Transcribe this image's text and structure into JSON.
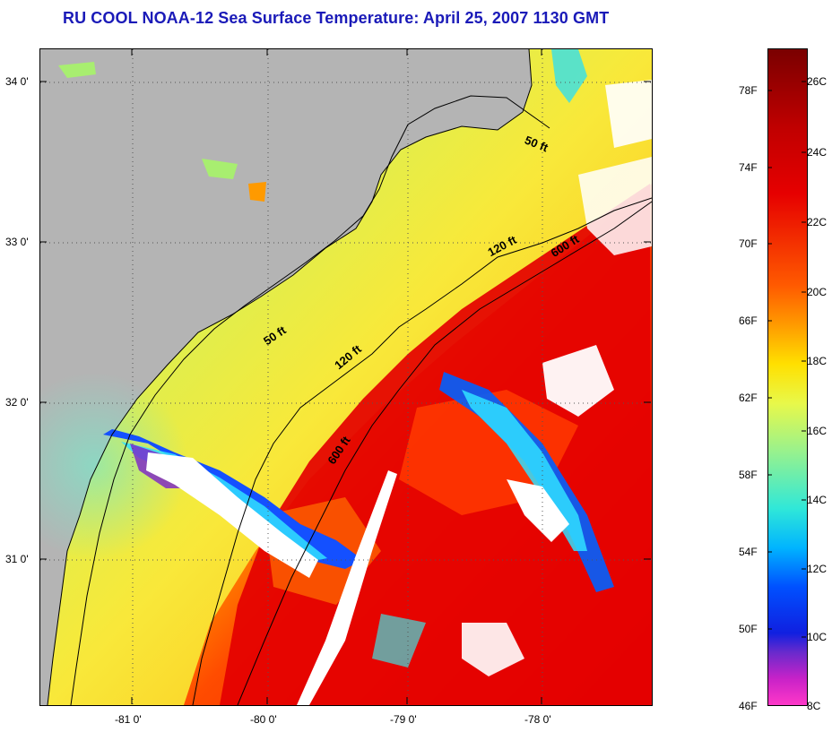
{
  "title": "RU COOL  NOAA-12  Sea Surface Temperature:  April 25, 2007 1130 GMT",
  "map": {
    "lat_labels": [
      "34 0'",
      "33 0'",
      "32 0'",
      "31 0'"
    ],
    "lon_labels": [
      "-81 0'",
      "-80 0'",
      "-79 0'",
      "-78 0'"
    ],
    "contour_labels": [
      "50 ft",
      "120 ft",
      "600 ft",
      "50 ft",
      "120 ft",
      "600 ft"
    ]
  },
  "colorbar": {
    "fahrenheit_labels": [
      "78F",
      "74F",
      "70F",
      "66F",
      "62F",
      "58F",
      "54F",
      "50F",
      "46F"
    ],
    "celsius_labels": [
      "26C",
      "24C",
      "22C",
      "20C",
      "18C",
      "16C",
      "14C",
      "12C",
      "10C",
      "8C"
    ]
  },
  "colors": {
    "title": "#1a1ab8",
    "land": "#b4b4b4",
    "warm": "#e60000",
    "cool": "#00b4ff",
    "cloud": "#ffffff"
  }
}
